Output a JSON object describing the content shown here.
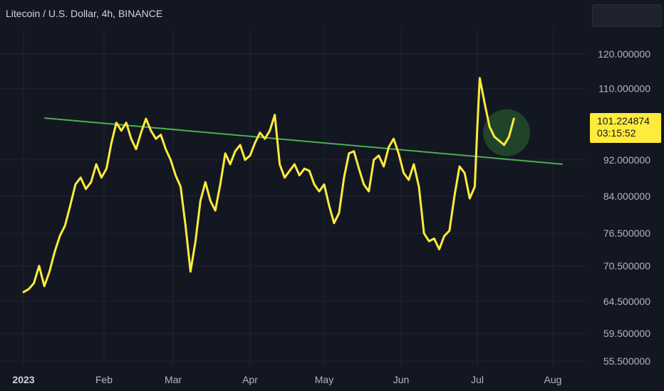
{
  "header": {
    "symbol_title": "Litecoin / U.S. Dollar, 4h, BINANCE"
  },
  "price_tag": {
    "price": "101.224874",
    "countdown": "03:15:52",
    "color": "#ffeb3b"
  },
  "colors": {
    "background": "#131722",
    "grid": "#1f2433",
    "series": "#ffeb3b",
    "trendline": "#4caf50",
    "highlight_circle": "#2e7d32"
  },
  "chart_data": {
    "type": "line",
    "title": "Litecoin / U.S. Dollar, 4h, BINANCE",
    "y_scale": "log",
    "ylim": [
      53.5,
      128
    ],
    "y_ticks": [
      "120.000000",
      "110.000000",
      "92.000000",
      "84.000000",
      "76.500000",
      "70.500000",
      "64.500000",
      "59.500000",
      "55.500000"
    ],
    "x_ticks": [
      "2023",
      "Feb",
      "Mar",
      "Apr",
      "May",
      "Jun",
      "Jul",
      "Aug"
    ],
    "x_ticks_bold": [
      "2023"
    ],
    "x_range": [
      "2023-01-01",
      "2023-08-13"
    ],
    "grid": true,
    "series": [
      {
        "color": "#ffeb3b",
        "x": [
          "2023-01-01",
          "2023-01-03",
          "2023-01-05",
          "2023-01-07",
          "2023-01-09",
          "2023-01-11",
          "2023-01-13",
          "2023-01-15",
          "2023-01-17",
          "2023-01-19",
          "2023-01-21",
          "2023-01-23",
          "2023-01-25",
          "2023-01-27",
          "2023-01-29",
          "2023-01-31",
          "2023-02-02",
          "2023-02-04",
          "2023-02-06",
          "2023-02-08",
          "2023-02-10",
          "2023-02-12",
          "2023-02-14",
          "2023-02-16",
          "2023-02-18",
          "2023-02-20",
          "2023-02-22",
          "2023-02-24",
          "2023-02-26",
          "2023-02-28",
          "2023-03-02",
          "2023-03-04",
          "2023-03-06",
          "2023-03-08",
          "2023-03-10",
          "2023-03-12",
          "2023-03-14",
          "2023-03-16",
          "2023-03-18",
          "2023-03-20",
          "2023-03-22",
          "2023-03-24",
          "2023-03-26",
          "2023-03-28",
          "2023-03-30",
          "2023-04-01",
          "2023-04-03",
          "2023-04-05",
          "2023-04-07",
          "2023-04-09",
          "2023-04-11",
          "2023-04-13",
          "2023-04-15",
          "2023-04-17",
          "2023-04-19",
          "2023-04-21",
          "2023-04-23",
          "2023-04-25",
          "2023-04-27",
          "2023-04-29",
          "2023-05-01",
          "2023-05-03",
          "2023-05-05",
          "2023-05-07",
          "2023-05-09",
          "2023-05-11",
          "2023-05-13",
          "2023-05-15",
          "2023-05-17",
          "2023-05-19",
          "2023-05-21",
          "2023-05-23",
          "2023-05-25",
          "2023-05-27",
          "2023-05-29",
          "2023-05-31",
          "2023-06-02",
          "2023-06-04",
          "2023-06-06",
          "2023-06-08",
          "2023-06-10",
          "2023-06-12",
          "2023-06-14",
          "2023-06-16",
          "2023-06-18",
          "2023-06-20",
          "2023-06-22",
          "2023-06-24",
          "2023-06-26",
          "2023-06-28",
          "2023-06-30",
          "2023-07-01",
          "2023-07-02",
          "2023-07-04",
          "2023-07-06",
          "2023-07-08",
          "2023-07-10",
          "2023-07-12",
          "2023-07-14",
          "2023-07-16"
        ],
        "y": [
          66.0,
          66.5,
          67.5,
          70.5,
          67.0,
          69.5,
          73.0,
          76.0,
          78.0,
          82.0,
          86.5,
          88.0,
          85.5,
          87.0,
          91.0,
          88.0,
          90.0,
          96.0,
          101.0,
          99.0,
          101.0,
          97.0,
          94.5,
          98.5,
          102.0,
          99.0,
          97.0,
          98.0,
          94.5,
          92.0,
          88.5,
          86.0,
          78.0,
          69.5,
          75.0,
          83.0,
          87.0,
          83.0,
          81.0,
          86.5,
          93.5,
          91.0,
          94.0,
          95.5,
          92.0,
          93.0,
          96.0,
          98.5,
          97.0,
          99.0,
          103.0,
          91.0,
          88.0,
          89.5,
          91.0,
          88.5,
          90.0,
          89.5,
          86.5,
          85.0,
          86.5,
          82.0,
          78.5,
          80.5,
          88.0,
          93.5,
          94.0,
          90.0,
          86.5,
          85.0,
          92.0,
          93.0,
          90.5,
          95.0,
          97.0,
          93.5,
          89.0,
          87.5,
          91.0,
          86.0,
          76.5,
          75.0,
          75.5,
          73.5,
          76.0,
          77.0,
          84.0,
          90.5,
          89.0,
          83.5,
          86.0,
          100.0,
          113.0,
          106.0,
          100.0,
          97.5,
          96.5,
          95.5,
          97.5,
          102.0
        ]
      }
    ],
    "trendline": {
      "color": "#4caf50",
      "points": [
        {
          "x": "2023-01-09",
          "y": 102.2
        },
        {
          "x": "2023-08-05",
          "y": 91.0
        }
      ]
    },
    "highlight": {
      "x": "2023-07-13",
      "y": 98.5,
      "color": "#2e7d32"
    }
  }
}
